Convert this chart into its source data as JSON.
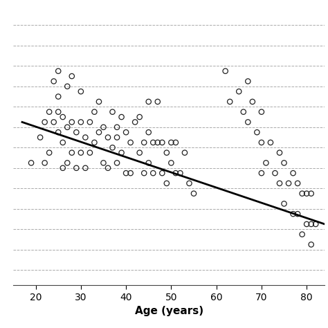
{
  "title": "",
  "xlabel": "Age (years)",
  "ylabel": "",
  "xlim": [
    15,
    84
  ],
  "ylim": [
    14,
    68
  ],
  "xticks": [
    20,
    30,
    40,
    50,
    60,
    70,
    80
  ],
  "background_color": "#ffffff",
  "scatter_color": "none",
  "scatter_edgecolor": "#222222",
  "scatter_size": 28,
  "scatter_linewidth": 0.9,
  "line_color": "#000000",
  "line_width": 2.0,
  "grid_color": "#aaaaaa",
  "grid_linestyle": "--",
  "grid_linewidth": 0.7,
  "xlabel_fontsize": 11,
  "xlabel_fontweight": "bold",
  "tick_fontsize": 10,
  "regression_x0": 17,
  "regression_y0": 46,
  "regression_x1": 84,
  "regression_y1": 26,
  "dashed_y_positions": [
    17,
    21,
    25,
    29,
    33,
    37,
    41,
    45,
    49,
    53,
    57,
    61,
    65
  ],
  "scatter_x": [
    19,
    21,
    22,
    22,
    23,
    23,
    24,
    24,
    25,
    25,
    25,
    25,
    26,
    26,
    26,
    27,
    27,
    27,
    28,
    28,
    28,
    29,
    29,
    30,
    30,
    30,
    31,
    31,
    32,
    32,
    33,
    33,
    34,
    34,
    35,
    35,
    36,
    36,
    37,
    37,
    38,
    38,
    38,
    39,
    39,
    40,
    40,
    41,
    41,
    42,
    43,
    43,
    44,
    44,
    45,
    45,
    45,
    46,
    46,
    47,
    47,
    48,
    48,
    49,
    49,
    50,
    50,
    51,
    51,
    52,
    53,
    54,
    55,
    62,
    63,
    65,
    66,
    67,
    67,
    68,
    69,
    70,
    70,
    70,
    71,
    72,
    73,
    74,
    74,
    75,
    75,
    76,
    77,
    77,
    78,
    78,
    79,
    79,
    80,
    80,
    81,
    81,
    81,
    82
  ],
  "scatter_y": [
    38,
    43,
    46,
    38,
    48,
    40,
    54,
    46,
    51,
    44,
    56,
    48,
    42,
    47,
    37,
    45,
    38,
    53,
    46,
    55,
    40,
    44,
    37,
    46,
    52,
    40,
    43,
    37,
    46,
    40,
    48,
    42,
    50,
    44,
    45,
    38,
    43,
    37,
    48,
    41,
    45,
    38,
    43,
    40,
    47,
    44,
    36,
    42,
    36,
    46,
    40,
    47,
    42,
    36,
    44,
    38,
    50,
    42,
    36,
    50,
    42,
    42,
    36,
    40,
    34,
    42,
    38,
    42,
    36,
    36,
    40,
    34,
    32,
    56,
    50,
    52,
    48,
    54,
    46,
    50,
    44,
    48,
    42,
    36,
    38,
    42,
    36,
    40,
    34,
    38,
    30,
    34,
    36,
    28,
    34,
    28,
    32,
    24,
    32,
    26,
    32,
    26,
    22,
    26
  ]
}
